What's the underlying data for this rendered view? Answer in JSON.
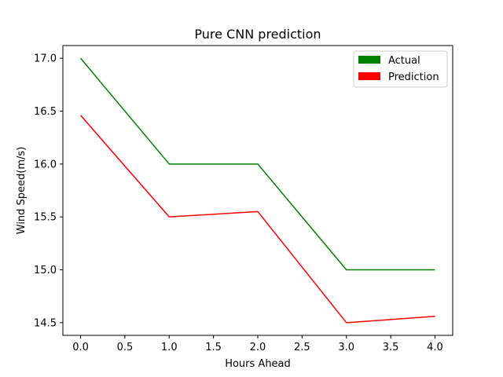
{
  "chart_data": {
    "type": "line",
    "title": "Pure CNN prediction",
    "xlabel": "Hours Ahead",
    "ylabel": "Wind Speed(m/s)",
    "x": [
      0,
      1,
      2,
      3,
      4
    ],
    "xlim": [
      -0.2,
      4.2
    ],
    "ylim": [
      14.38,
      17.12
    ],
    "xticks": [
      "0.0",
      "0.5",
      "1.0",
      "1.5",
      "2.0",
      "2.5",
      "3.0",
      "3.5",
      "4.0"
    ],
    "yticks": [
      "14.5",
      "15.0",
      "15.5",
      "16.0",
      "16.5",
      "17.0"
    ],
    "grid": false,
    "legend_position": "top-right",
    "series": [
      {
        "name": "Actual",
        "color": "#008000",
        "values": [
          17.0,
          16.0,
          16.0,
          15.0,
          15.0
        ]
      },
      {
        "name": "Prediction",
        "color": "#ff0000",
        "values": [
          16.46,
          15.5,
          15.55,
          14.5,
          14.56
        ]
      }
    ]
  }
}
